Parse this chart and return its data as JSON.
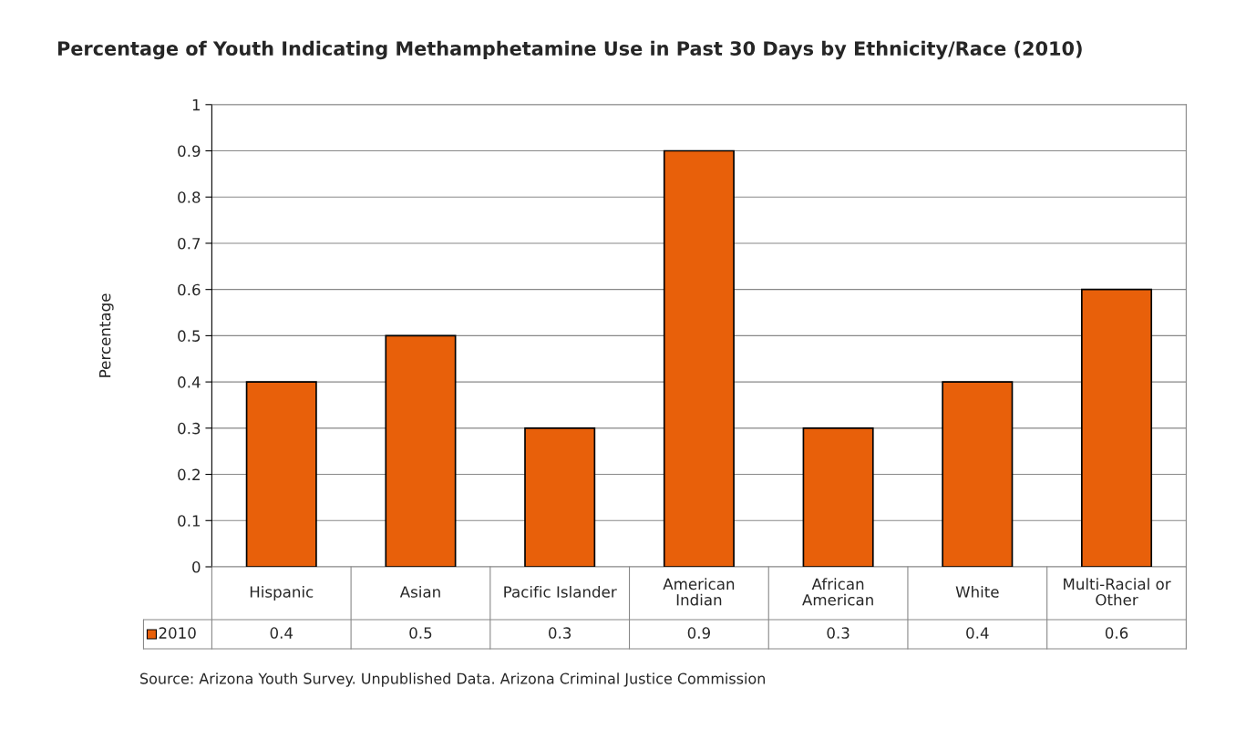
{
  "chart_data": {
    "type": "bar",
    "title": "Percentage of Youth Indicating Methamphetamine Use in Past 30 Days by Ethnicity/Race (2010)",
    "ylabel": "Percentage",
    "categories": [
      "Hispanic",
      "Asian",
      "Pacific Islander",
      "American\nIndian",
      "African\nAmerican",
      "White",
      "Multi-Racial or\nOther"
    ],
    "series": [
      {
        "name": "2010",
        "color": "#e8600a",
        "values": [
          0.4,
          0.5,
          0.3,
          0.9,
          0.3,
          0.4,
          0.6
        ]
      }
    ],
    "ylim": [
      0,
      1
    ],
    "yticks": [
      0,
      0.1,
      0.2,
      0.3,
      0.4,
      0.5,
      0.6,
      0.7,
      0.8,
      0.9,
      1
    ],
    "grid": "y",
    "data_labels": true,
    "legend": "bottom",
    "annotations": [
      "Source: Arizona Youth Survey. Unpublished Data. Arizona Criminal Justice Commission"
    ]
  }
}
